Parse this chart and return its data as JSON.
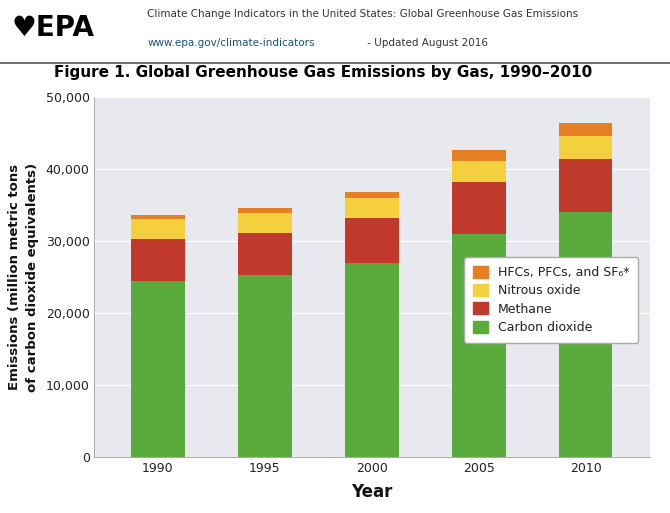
{
  "years": [
    "1990",
    "1995",
    "2000",
    "2005",
    "2010"
  ],
  "carbon_dioxide": [
    24500,
    25300,
    27000,
    31000,
    34000
  ],
  "methane": [
    5800,
    5800,
    6200,
    7200,
    7400
  ],
  "nitrous_oxide": [
    2800,
    2800,
    2800,
    3000,
    3200
  ],
  "hfcs_pfcs_sf6": [
    500,
    700,
    900,
    1500,
    1800
  ],
  "colors": {
    "carbon_dioxide": "#5aaa3c",
    "methane": "#c0392b",
    "nitrous_oxide": "#f4d03f",
    "hfcs_pfcs_sf6": "#e67e22"
  },
  "title": "Figure 1. Global Greenhouse Gas Emissions by Gas, 1990–2010",
  "xlabel": "Year",
  "ylabel": "Emissions (million metric tons\nof carbon dioxide equivalents)",
  "ylim": [
    0,
    50000
  ],
  "yticks": [
    0,
    10000,
    20000,
    30000,
    40000,
    50000
  ],
  "bar_width": 0.5,
  "plot_bg_color": "#e8e9ef",
  "fig_bg_color": "#ffffff",
  "header_title": "Climate Change Indicators in the United States: Global Greenhouse Gas Emissions",
  "header_url": "www.epa.gov/climate-indicators",
  "header_update": " - Updated August 2016",
  "title_fontsize": 11,
  "axis_label_fontsize": 10,
  "tick_fontsize": 9,
  "legend_fontsize": 9
}
